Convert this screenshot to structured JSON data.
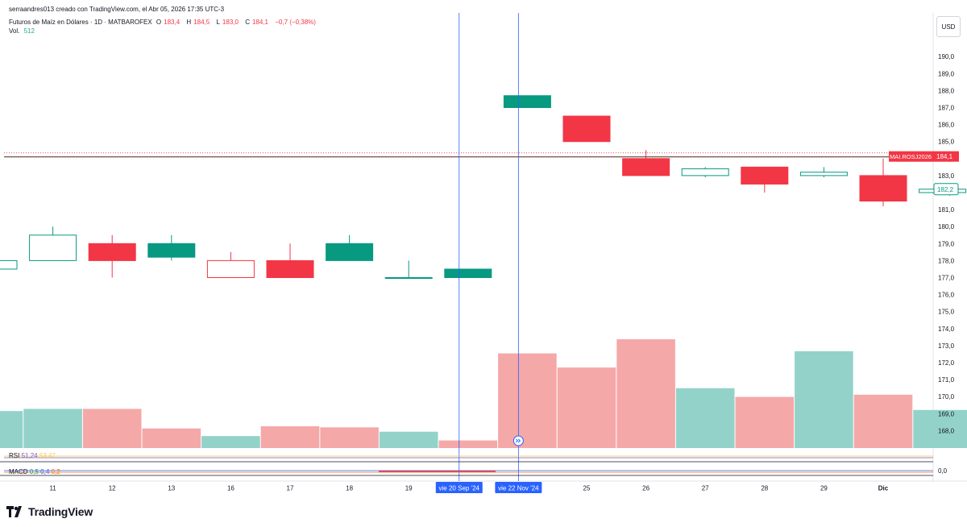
{
  "watermark": "serraandres013 creado con TradingView.com, el Abr 05, 2026 17:35 UTC-3",
  "header": {
    "symbol": "Futuros de Maíz en Dólares · 1D · MATBAROFEX",
    "o_label": "O",
    "o_value": "183,4",
    "h_label": "H",
    "h_value": "184,5",
    "l_label": "L",
    "l_value": "183,0",
    "c_label": "C",
    "c_value": "184,1",
    "change": "−0,7 (−0,38%)",
    "vol_label": "Vol.",
    "vol_value": "512"
  },
  "currency": "USD",
  "price_tag": {
    "ticker": "MAI.ROSJ2026",
    "value": "184,1"
  },
  "last_tag": "182,2",
  "indicators": {
    "rsi_label": "RSI",
    "rsi_v1": "51,24",
    "rsi_v2": "53,47",
    "macd_label": "MACD",
    "macd_v1": "0,5",
    "macd_v2": "0,4",
    "macd_v3": "0,2",
    "macd_axis": "0,0"
  },
  "brand": "TradingView",
  "colors": {
    "up": "#089981",
    "down": "#f23645",
    "vol_up": "#93d2c9",
    "vol_down": "#f5a8a8",
    "crosshair": "#2962ff"
  },
  "chart_data": {
    "type": "bar",
    "y_ticks": [
      "168,0",
      "169,0",
      "170,0",
      "171,0",
      "172,0",
      "173,0",
      "174,0",
      "175,0",
      "176,0",
      "177,0",
      "178,0",
      "179,0",
      "180,0",
      "181,0",
      "182,0",
      "183,0",
      "184,0",
      "185,0",
      "186,0",
      "187,0",
      "188,0",
      "189,0",
      "190,0"
    ],
    "ylim": [
      167.6,
      191.5
    ],
    "x_ticks": [
      "11",
      "12",
      "13",
      "16",
      "17",
      "18",
      "19",
      "25",
      "26",
      "27",
      "28",
      "29",
      "Dic"
    ],
    "crosshair_labels": [
      "vie 20 Sep '24",
      "vie 22 Nov '24"
    ],
    "candles": [
      {
        "o": 177.5,
        "h": 178.1,
        "l": 177.5,
        "c": 178.0
      },
      {
        "o": 178.0,
        "h": 180.0,
        "l": 178.0,
        "c": 179.5
      },
      {
        "o": 179.0,
        "h": 179.5,
        "l": 177.0,
        "c": 178.0
      },
      {
        "o": 178.2,
        "h": 179.5,
        "l": 178.0,
        "c": 179.0
      },
      {
        "o": 178.0,
        "h": 178.5,
        "l": 177.0,
        "c": 177.0
      },
      {
        "o": 178.0,
        "h": 179.0,
        "l": 177.0,
        "c": 177.0
      },
      {
        "o": 178.0,
        "h": 179.5,
        "l": 178.0,
        "c": 179.0
      },
      {
        "o": 177.0,
        "h": 178.0,
        "l": 177.0,
        "c": 177.0
      },
      {
        "o": 177.0,
        "h": 177.5,
        "l": 177.0,
        "c": 177.5
      },
      {
        "o": 187.0,
        "h": 187.7,
        "l": 187.0,
        "c": 187.7
      },
      {
        "o": 186.5,
        "h": 186.5,
        "l": 185.0,
        "c": 185.0
      },
      {
        "o": 184.0,
        "h": 184.5,
        "l": 183.0,
        "c": 183.0
      },
      {
        "o": 183.0,
        "h": 183.5,
        "l": 182.9,
        "c": 183.4
      },
      {
        "o": 183.5,
        "h": 183.5,
        "l": 182.0,
        "c": 182.5
      },
      {
        "o": 183.0,
        "h": 183.5,
        "l": 182.9,
        "c": 183.2
      },
      {
        "o": 183.0,
        "h": 184.0,
        "l": 181.2,
        "c": 181.5
      },
      {
        "o": 182.0,
        "h": 182.3,
        "l": 182.0,
        "c": 182.2
      }
    ],
    "volumes": [
      {
        "v": 0.34,
        "up": true
      },
      {
        "v": 0.36,
        "up": true
      },
      {
        "v": 0.36,
        "up": false
      },
      {
        "v": 0.18,
        "up": false
      },
      {
        "v": 0.11,
        "up": true
      },
      {
        "v": 0.2,
        "up": false
      },
      {
        "v": 0.19,
        "up": false
      },
      {
        "v": 0.15,
        "up": true
      },
      {
        "v": 0.07,
        "up": false
      },
      {
        "v": 0.87,
        "up": false
      },
      {
        "v": 0.74,
        "up": false
      },
      {
        "v": 1.0,
        "up": false
      },
      {
        "v": 0.55,
        "up": true
      },
      {
        "v": 0.47,
        "up": false
      },
      {
        "v": 0.89,
        "up": true
      },
      {
        "v": 0.49,
        "up": false
      },
      {
        "v": 0.35,
        "up": true
      }
    ]
  }
}
